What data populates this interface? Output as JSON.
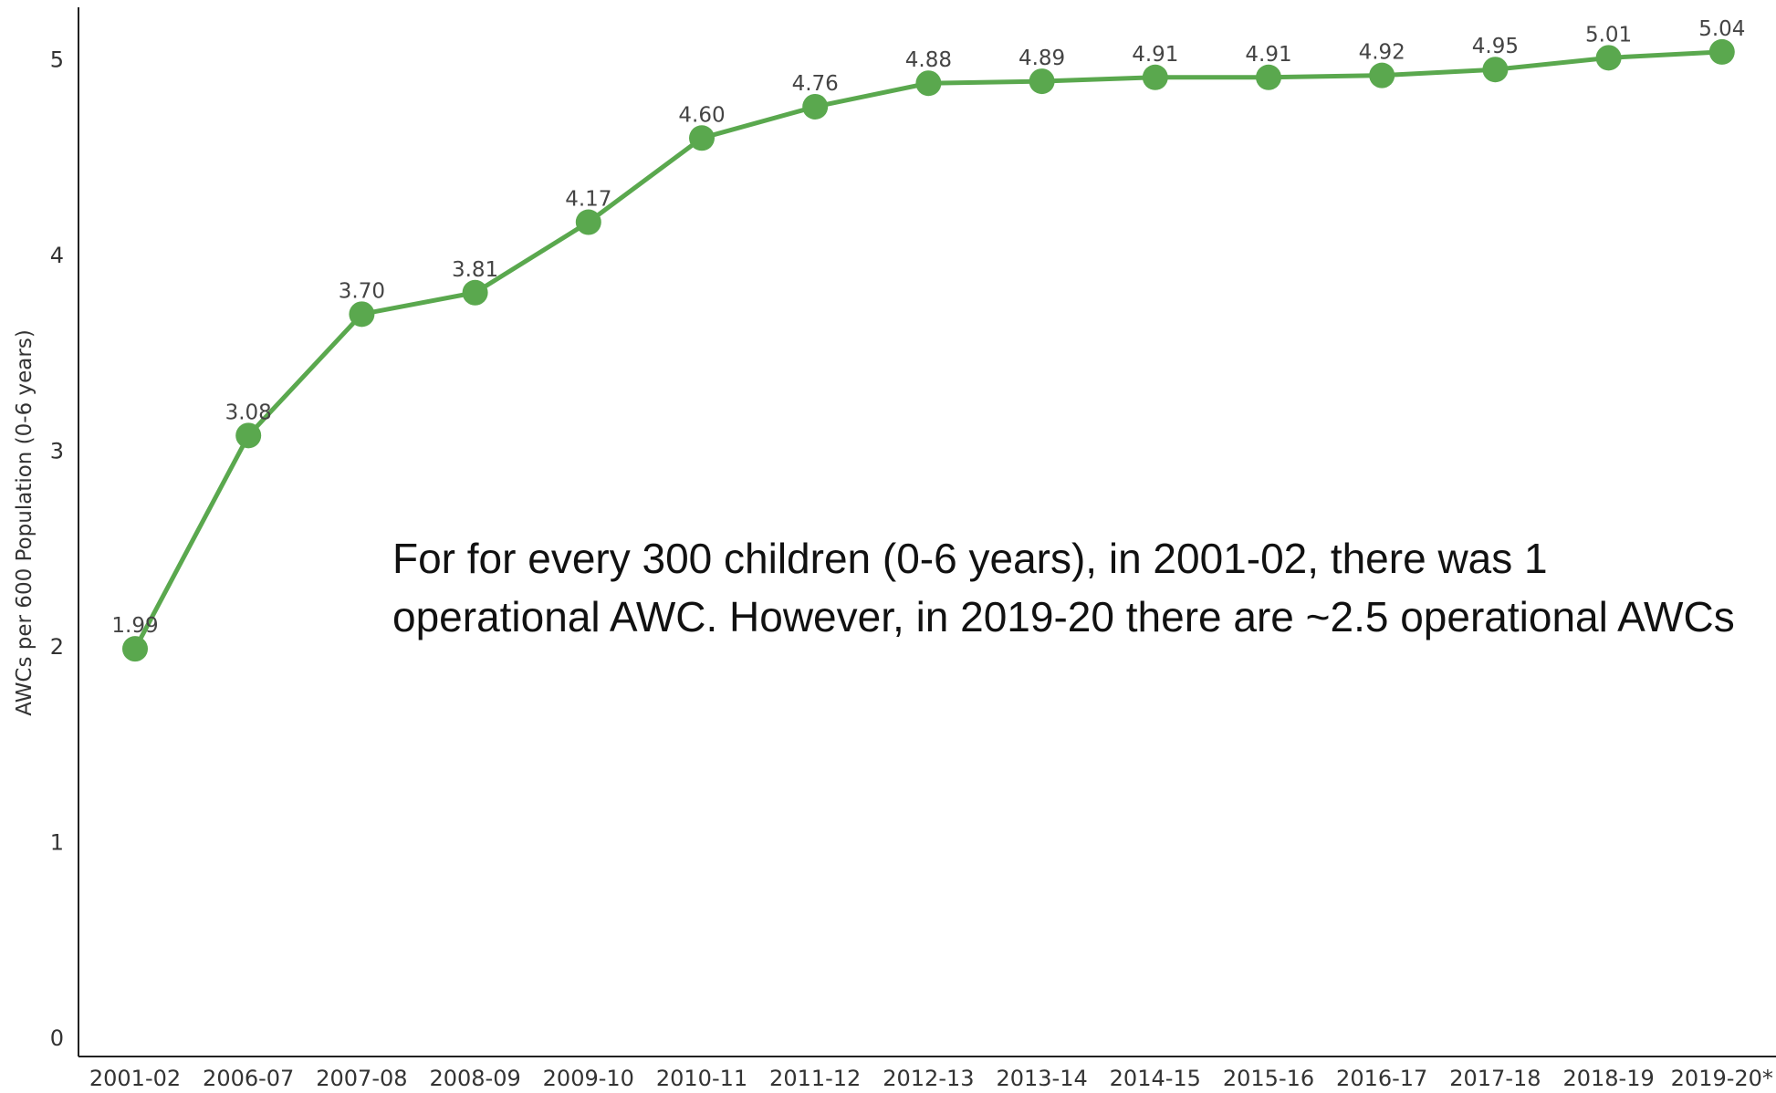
{
  "chart_data": {
    "type": "line",
    "categories": [
      "2001-02",
      "2006-07",
      "2007-08",
      "2008-09",
      "2009-10",
      "2010-11",
      "2011-12",
      "2012-13",
      "2013-14",
      "2014-15",
      "2015-16",
      "2016-17",
      "2017-18",
      "2018-19",
      "2019-20*"
    ],
    "series": [
      {
        "values": [
          1.99,
          3.08,
          3.7,
          3.81,
          4.17,
          4.6,
          4.76,
          4.88,
          4.89,
          4.91,
          4.91,
          4.92,
          4.95,
          5.01,
          5.04
        ],
        "labels": [
          "1.99",
          "3.08",
          "3.70",
          "3.81",
          "4.17",
          "4.60",
          "4.76",
          "4.88",
          "4.89",
          "4.91",
          "4.91",
          "4.92",
          "4.95",
          "5.01",
          "5.04"
        ],
        "color": "#5aa84e"
      }
    ],
    "ylabel": "AWCs per 600 Population (0-6 years)",
    "xlabel": "",
    "yticks": [
      "0",
      "1",
      "2",
      "3",
      "4",
      "5"
    ],
    "ylim": [
      0,
      5.3
    ],
    "grid": false,
    "annotation": {
      "lines": [
        "For for every 300 children (0-6 years),  in 2001-02, there was 1",
        "operational AWC. However, in 2019-20 there are ~2.5 operational AWCs"
      ]
    }
  }
}
